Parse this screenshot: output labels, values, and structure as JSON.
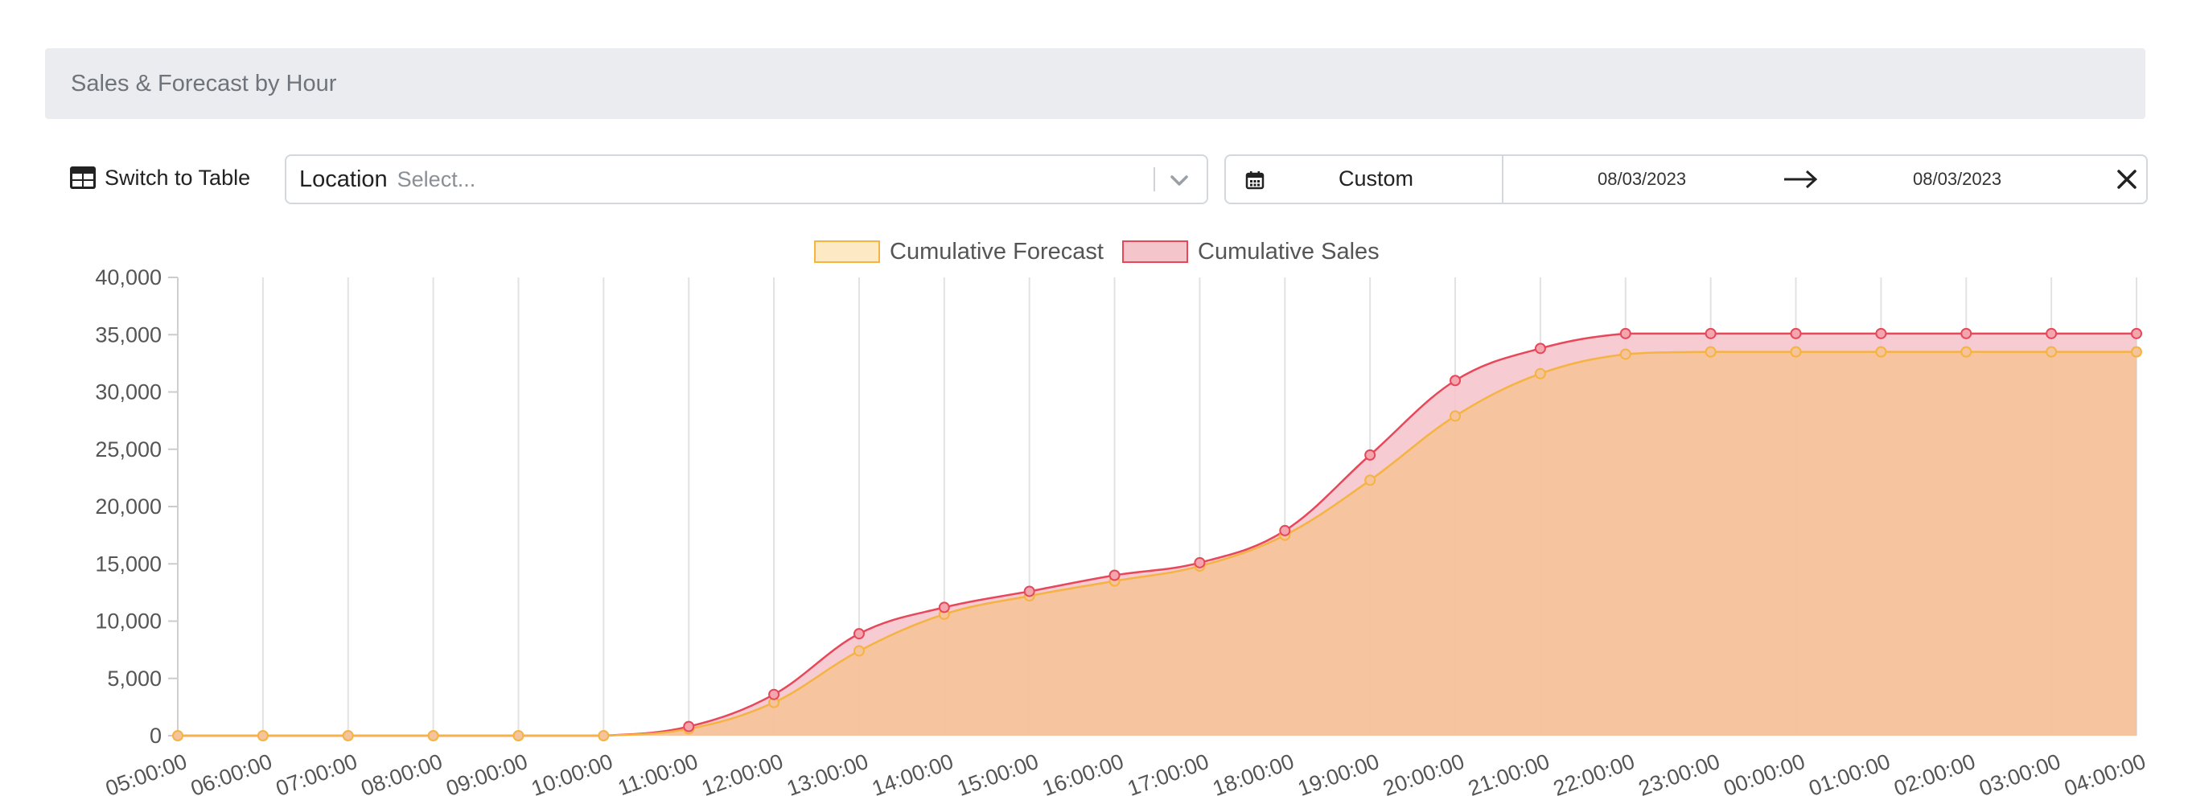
{
  "header": {
    "title": "Sales & Forecast by Hour"
  },
  "toolbar": {
    "switch_label": "Switch to Table",
    "location_label": "Location",
    "location_placeholder": "Select...",
    "range_preset": "Custom",
    "date_start": "08/03/2023",
    "date_end": "08/03/2023"
  },
  "icons": [
    "table-icon",
    "chevron-down-icon",
    "calendar-icon",
    "arrow-right-icon",
    "close-icon"
  ],
  "colors": {
    "forecast_fill": "#f5c39c",
    "forecast_line": "#f5b342",
    "sales_fill": "#f5c5cc",
    "sales_line": "#e8475a"
  },
  "chart_data": {
    "type": "area",
    "categories": [
      "05:00:00",
      "06:00:00",
      "07:00:00",
      "08:00:00",
      "09:00:00",
      "10:00:00",
      "11:00:00",
      "12:00:00",
      "13:00:00",
      "14:00:00",
      "15:00:00",
      "16:00:00",
      "17:00:00",
      "18:00:00",
      "19:00:00",
      "20:00:00",
      "21:00:00",
      "22:00:00",
      "23:00:00",
      "00:00:00",
      "01:00:00",
      "02:00:00",
      "03:00:00",
      "04:00:00"
    ],
    "series": [
      {
        "name": "Cumulative Forecast",
        "values": [
          0,
          0,
          0,
          0,
          0,
          0,
          600,
          2900,
          7400,
          10600,
          12200,
          13500,
          14800,
          17500,
          22300,
          27900,
          31600,
          33300,
          33500,
          33500,
          33500,
          33500,
          33500,
          33500
        ]
      },
      {
        "name": "Cumulative Sales",
        "values": [
          0,
          0,
          0,
          0,
          0,
          0,
          800,
          3600,
          8900,
          11200,
          12600,
          14000,
          15100,
          17900,
          24500,
          31000,
          33800,
          35100,
          35100,
          35100,
          35100,
          35100,
          35100,
          35100
        ]
      }
    ],
    "yticks": [
      "0",
      "5,000",
      "10,000",
      "15,000",
      "20,000",
      "25,000",
      "30,000",
      "35,000",
      "40,000"
    ],
    "ylim": [
      0,
      40000
    ],
    "grid": "vertical",
    "legend": "top-center"
  }
}
